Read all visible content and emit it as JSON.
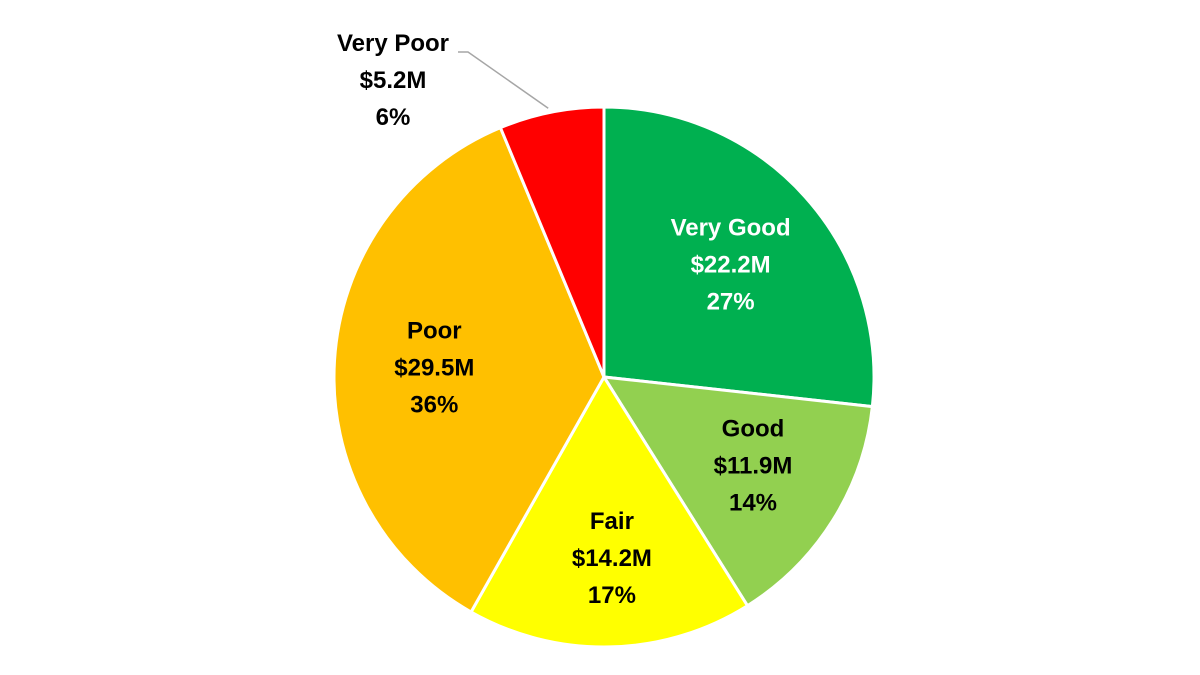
{
  "chart_data": {
    "type": "pie",
    "title": "",
    "start_angle_deg": 0,
    "direction": "clockwise",
    "slices": [
      {
        "name": "Very Good",
        "value": 22.2,
        "value_label": "$22.2M",
        "percent_label": "27%",
        "color": "#00b050",
        "text_color": "#ffffff"
      },
      {
        "name": "Good",
        "value": 11.9,
        "value_label": "$11.9M",
        "percent_label": "14%",
        "color": "#92d050",
        "text_color": "#000000"
      },
      {
        "name": "Fair",
        "value": 14.2,
        "value_label": "$14.2M",
        "percent_label": "17%",
        "color": "#ffff00",
        "text_color": "#000000"
      },
      {
        "name": "Poor",
        "value": 29.5,
        "value_label": "$29.5M",
        "percent_label": "36%",
        "color": "#ffc000",
        "text_color": "#000000"
      },
      {
        "name": "Very Poor",
        "value": 5.2,
        "value_label": "$5.2M",
        "percent_label": "6%",
        "color": "#ff0000",
        "text_color": "#000000",
        "label_outside": true
      }
    ],
    "legend": "none",
    "leader_line_color": "#a6a6a6"
  }
}
